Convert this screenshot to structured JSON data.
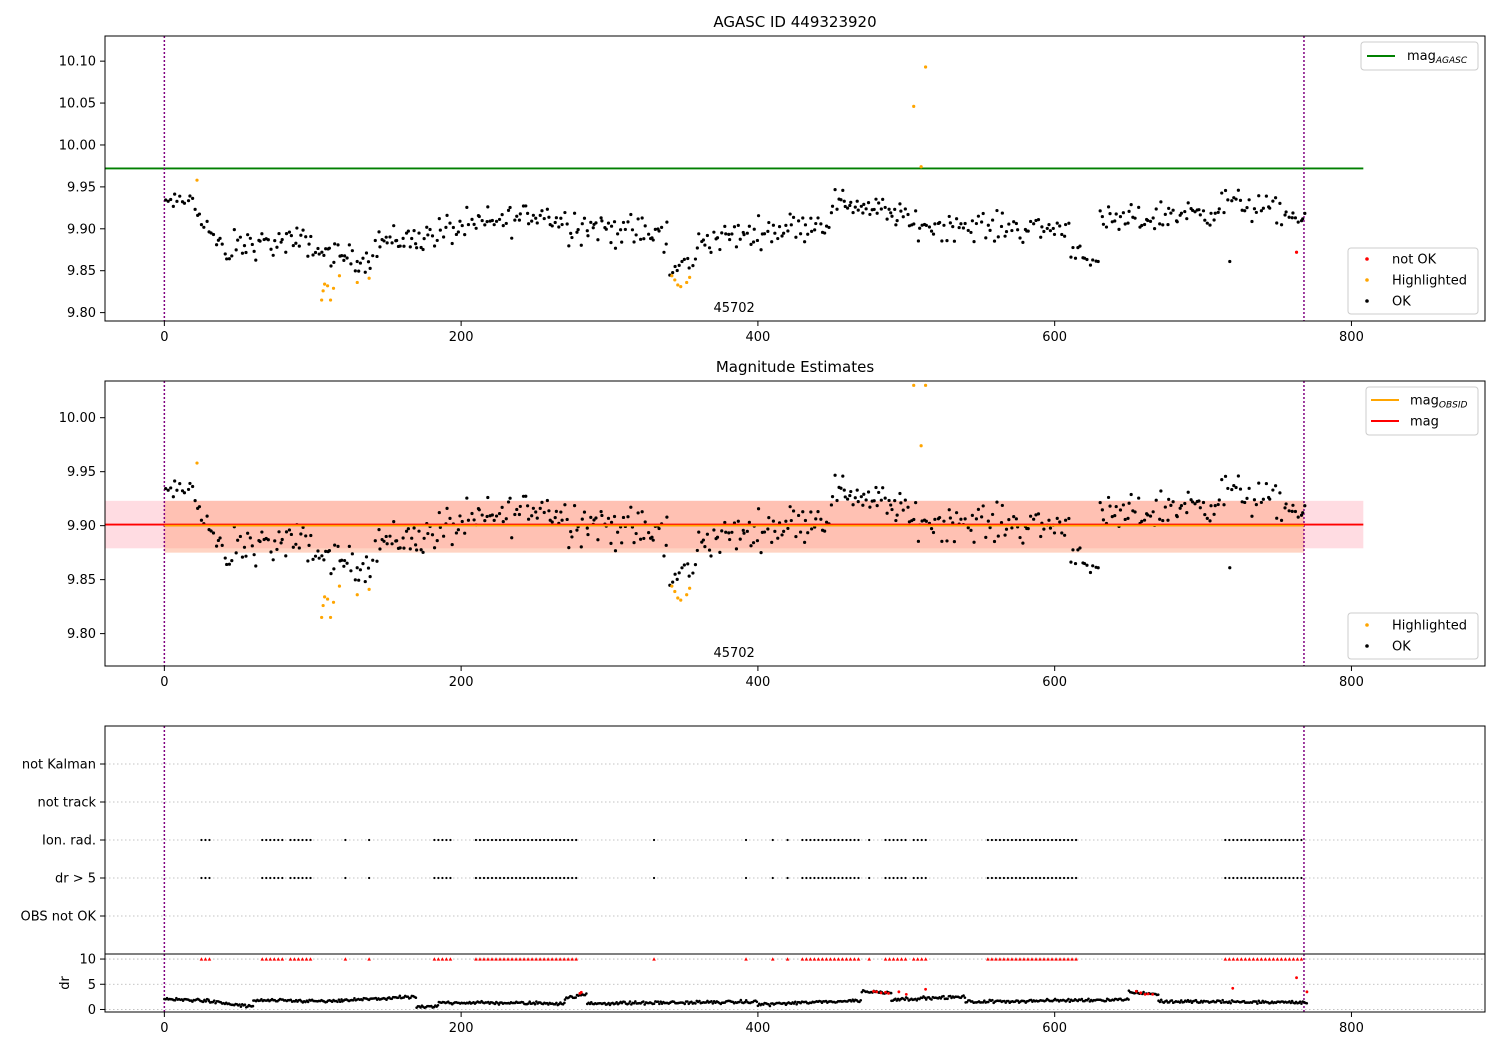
{
  "colors": {
    "ok": "#000000",
    "highlighted": "#ffa500",
    "not_ok": "#ff0000",
    "mag_agasc_line": "#008000",
    "mag_obsid_line": "#ffa500",
    "mag_line": "#ff0000",
    "obsid_band": "#ffa07a",
    "mag_band": "#ffc0cb",
    "boundary_line": "#800080",
    "grid": "#b0b0b0"
  },
  "chart_data": [
    {
      "type": "scatter",
      "title": "AGASC ID 449323920",
      "xlim": [
        -40,
        890
      ],
      "ylim": [
        9.79,
        10.13
      ],
      "xticks": [
        0,
        200,
        400,
        600,
        800
      ],
      "yticks": [
        9.8,
        9.85,
        9.9,
        9.95,
        10.0,
        10.05,
        10.1
      ],
      "ytick_labels": [
        "9.80",
        "9.85",
        "9.90",
        "9.95",
        "10.00",
        "10.05",
        "10.10"
      ],
      "obsid_boundaries": [
        0,
        768
      ],
      "obsid_labels": [
        {
          "x": 384,
          "text": "45702"
        }
      ],
      "hlines": [
        {
          "name": "mag_AGASC",
          "y": 9.972,
          "x": [
            -40,
            808
          ],
          "color": "#008000"
        }
      ],
      "legend_lines": {
        "label": "mag",
        "subscript": "AGASC",
        "position": "upper-right"
      },
      "legend_points": {
        "entries": [
          "not OK",
          "Highlighted",
          "OK"
        ],
        "position": "lower-right"
      },
      "highlighted_points": [
        [
          22,
          9.958
        ],
        [
          106,
          9.815
        ],
        [
          107,
          9.826
        ],
        [
          108,
          9.834
        ],
        [
          110,
          9.832
        ],
        [
          112,
          9.815
        ],
        [
          114,
          9.829
        ],
        [
          118,
          9.844
        ],
        [
          130,
          9.836
        ],
        [
          138,
          9.841
        ],
        [
          342,
          9.844
        ],
        [
          344,
          9.839
        ],
        [
          346,
          9.833
        ],
        [
          348,
          9.831
        ],
        [
          352,
          9.836
        ],
        [
          354,
          9.842
        ],
        [
          505,
          10.046
        ],
        [
          510,
          9.974
        ],
        [
          513,
          10.093
        ]
      ],
      "not_ok_points": [
        [
          763,
          9.872
        ]
      ],
      "ok_segments": [
        {
          "x0": 0,
          "x1": 20,
          "n": 12,
          "v0": 9.93,
          "v1": 9.935,
          "noise": 0.008
        },
        {
          "x0": 20,
          "x1": 45,
          "n": 16,
          "v0": 9.93,
          "v1": 9.855,
          "noise": 0.012
        },
        {
          "x0": 45,
          "x1": 100,
          "n": 40,
          "v0": 9.88,
          "v1": 9.885,
          "noise": 0.014
        },
        {
          "x0": 100,
          "x1": 140,
          "n": 30,
          "v0": 9.875,
          "v1": 9.86,
          "noise": 0.012
        },
        {
          "x0": 140,
          "x1": 180,
          "n": 32,
          "v0": 9.885,
          "v1": 9.89,
          "noise": 0.015
        },
        {
          "x0": 180,
          "x1": 260,
          "n": 55,
          "v0": 9.895,
          "v1": 9.92,
          "noise": 0.016
        },
        {
          "x0": 260,
          "x1": 340,
          "n": 60,
          "v0": 9.91,
          "v1": 9.89,
          "noise": 0.018
        },
        {
          "x0": 340,
          "x1": 360,
          "n": 12,
          "v0": 9.845,
          "v1": 9.87,
          "noise": 0.01
        },
        {
          "x0": 360,
          "x1": 450,
          "n": 65,
          "v0": 9.885,
          "v1": 9.91,
          "noise": 0.014
        },
        {
          "x0": 450,
          "x1": 500,
          "n": 40,
          "v0": 9.935,
          "v1": 9.915,
          "noise": 0.012
        },
        {
          "x0": 500,
          "x1": 610,
          "n": 75,
          "v0": 9.905,
          "v1": 9.9,
          "noise": 0.014
        },
        {
          "x0": 610,
          "x1": 630,
          "n": 12,
          "v0": 9.88,
          "v1": 9.86,
          "noise": 0.01
        },
        {
          "x0": 630,
          "x1": 715,
          "n": 60,
          "v0": 9.905,
          "v1": 9.925,
          "noise": 0.014
        },
        {
          "x0": 715,
          "x1": 770,
          "n": 35,
          "v0": 9.935,
          "v1": 9.91,
          "noise": 0.014
        }
      ],
      "ok_outliers": [
        [
          718,
          9.861
        ]
      ]
    },
    {
      "type": "scatter",
      "title": "Magnitude Estimates",
      "xlim": [
        -40,
        890
      ],
      "ylim": [
        9.77,
        10.034
      ],
      "xticks": [
        0,
        200,
        400,
        600,
        800
      ],
      "yticks": [
        9.8,
        9.85,
        9.9,
        9.95,
        10.0
      ],
      "ytick_labels": [
        "9.80",
        "9.85",
        "9.90",
        "9.95",
        "10.00"
      ],
      "obsid_boundaries": [
        0,
        768
      ],
      "obsid_labels": [
        {
          "x": 384,
          "text": "45702"
        }
      ],
      "bands": [
        {
          "name": "mag",
          "y0": 9.879,
          "y1": 9.923,
          "x": [
            -40,
            808
          ],
          "color": "#ffc0cb",
          "opacity": 0.55
        },
        {
          "name": "mag_OBSID",
          "y0": 9.875,
          "y1": 9.923,
          "x": [
            0,
            768
          ],
          "color": "#ffa07a",
          "opacity": 0.45
        }
      ],
      "hlines": [
        {
          "name": "mag",
          "y": 9.901,
          "x": [
            -40,
            808
          ],
          "color": "#ff0000"
        },
        {
          "name": "mag_OBSID",
          "y": 9.9,
          "x": [
            0,
            768
          ],
          "color": "#ffa500"
        }
      ],
      "legend_lines": {
        "entries": [
          {
            "label": "mag",
            "subscript": "OBSID"
          },
          {
            "label": "mag",
            "subscript": ""
          }
        ],
        "position": "upper-right"
      },
      "legend_points": {
        "entries": [
          "Highlighted",
          "OK"
        ],
        "position": "lower-right"
      },
      "highlighted_points": [
        [
          22,
          9.958
        ],
        [
          106,
          9.815
        ],
        [
          107,
          9.826
        ],
        [
          108,
          9.834
        ],
        [
          110,
          9.832
        ],
        [
          112,
          9.815
        ],
        [
          114,
          9.829
        ],
        [
          118,
          9.844
        ],
        [
          130,
          9.836
        ],
        [
          138,
          9.841
        ],
        [
          342,
          9.844
        ],
        [
          344,
          9.839
        ],
        [
          346,
          9.833
        ],
        [
          348,
          9.831
        ],
        [
          352,
          9.836
        ],
        [
          354,
          9.842
        ],
        [
          505,
          10.03
        ],
        [
          510,
          9.974
        ],
        [
          513,
          10.03
        ]
      ],
      "ok_segments": "same as top panel",
      "ok_outliers": [
        [
          718,
          9.861
        ]
      ]
    },
    {
      "type": "scatter",
      "title": "",
      "xlim": [
        -40,
        890
      ],
      "xticks": [
        0,
        200,
        400,
        600,
        800
      ],
      "categories": [
        "not Kalman",
        "not track",
        "Ion. rad.",
        "dr > 5",
        "OBS not OK"
      ],
      "obsid_boundaries": [
        0,
        768
      ],
      "flag_intervals": [
        [
          25,
          31
        ],
        [
          66,
          80
        ],
        [
          85,
          100
        ],
        [
          122,
          123
        ],
        [
          138,
          139
        ],
        [
          182,
          195
        ],
        [
          210,
          278
        ],
        [
          330,
          331
        ],
        [
          392,
          393
        ],
        [
          410,
          411
        ],
        [
          420,
          422
        ],
        [
          430,
          470
        ],
        [
          475,
          476
        ],
        [
          486,
          500
        ],
        [
          505,
          514
        ],
        [
          555,
          617
        ],
        [
          715,
          768
        ]
      ],
      "flag_rows": [
        "Ion. rad.",
        "dr > 5"
      ]
    },
    {
      "type": "scatter",
      "title": "",
      "ylabel": "dr",
      "xlim": [
        -40,
        890
      ],
      "ylim": [
        -0.5,
        11
      ],
      "xticks": [
        0,
        200,
        400,
        600,
        800
      ],
      "yticks": [
        0,
        5,
        10
      ],
      "ytick_labels": [
        "0",
        "5",
        "10"
      ],
      "obsid_boundaries": [
        0,
        768
      ],
      "flag_intervals": "same as flags panel",
      "flag_level": 10,
      "dr_segments": [
        {
          "x0": 0,
          "x1": 30,
          "v0": 2.0,
          "v1": 1.8
        },
        {
          "x0": 30,
          "x1": 60,
          "v0": 1.6,
          "v1": 0.5
        },
        {
          "x0": 60,
          "x1": 120,
          "v0": 1.8,
          "v1": 1.6
        },
        {
          "x0": 120,
          "x1": 170,
          "v0": 1.8,
          "v1": 2.5
        },
        {
          "x0": 170,
          "x1": 185,
          "v0": 0.4,
          "v1": 0.6
        },
        {
          "x0": 185,
          "x1": 270,
          "v0": 1.4,
          "v1": 1.2
        },
        {
          "x0": 270,
          "x1": 285,
          "v0": 2.2,
          "v1": 3.0
        },
        {
          "x0": 285,
          "x1": 400,
          "v0": 1.2,
          "v1": 1.5
        },
        {
          "x0": 400,
          "x1": 470,
          "v0": 1.0,
          "v1": 1.8
        },
        {
          "x0": 470,
          "x1": 490,
          "v0": 3.6,
          "v1": 3.3
        },
        {
          "x0": 490,
          "x1": 540,
          "v0": 2.0,
          "v1": 2.5
        },
        {
          "x0": 540,
          "x1": 650,
          "v0": 1.5,
          "v1": 2.0
        },
        {
          "x0": 650,
          "x1": 670,
          "v0": 3.5,
          "v1": 3.0
        },
        {
          "x0": 670,
          "x1": 770,
          "v0": 1.6,
          "v1": 1.4
        }
      ],
      "dr_red_points": [
        [
          280,
          3.2
        ],
        [
          281,
          3.4
        ],
        [
          478,
          3.6
        ],
        [
          480,
          3.5
        ],
        [
          483,
          3.3
        ],
        [
          486,
          3.4
        ],
        [
          488,
          3.2
        ],
        [
          495,
          3.5
        ],
        [
          500,
          3.0
        ],
        [
          513,
          4.0
        ],
        [
          655,
          3.6
        ],
        [
          658,
          3.3
        ],
        [
          661,
          3.0
        ],
        [
          663,
          3.1
        ],
        [
          666,
          3.0
        ],
        [
          720,
          4.2
        ],
        [
          770,
          3.5
        ],
        [
          763,
          6.3
        ]
      ]
    }
  ]
}
